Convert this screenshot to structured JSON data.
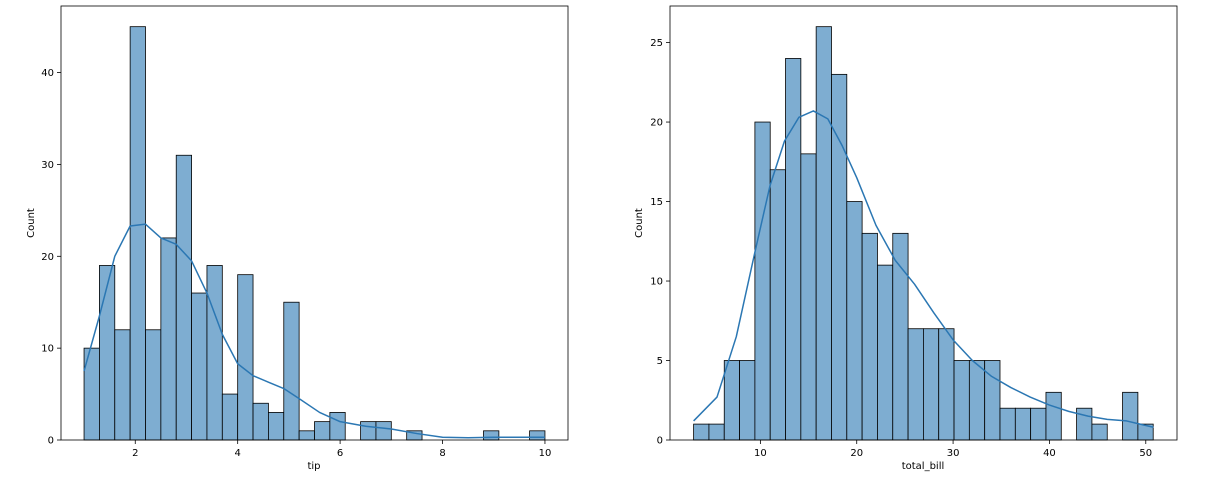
{
  "chart_data": [
    {
      "type": "bar",
      "subtype": "histogram",
      "kde": true,
      "xlabel": "tip",
      "ylabel": "Count",
      "xlim": [
        0.55,
        10.45
      ],
      "ylim": [
        0,
        47.25
      ],
      "xticks": [
        2,
        4,
        6,
        8,
        10
      ],
      "yticks": [
        0,
        10,
        20,
        30,
        40
      ],
      "grid": false,
      "bar_color": "#7eadd1",
      "bar_edge_color": "#000000",
      "line_color": "#2b77b3",
      "bin_start": 1.0,
      "bin_width": 0.3,
      "counts": [
        10,
        19,
        12,
        45,
        12,
        22,
        31,
        16,
        19,
        5,
        18,
        4,
        3,
        15,
        1,
        2,
        3,
        0,
        2,
        2,
        0,
        1,
        0,
        0,
        0,
        0,
        1,
        0,
        0,
        1
      ],
      "kde_curve": {
        "x": [
          1.0,
          1.3,
          1.6,
          1.9,
          2.2,
          2.5,
          2.8,
          3.1,
          3.4,
          3.7,
          4.0,
          4.3,
          4.6,
          4.9,
          5.2,
          5.6,
          6.0,
          6.5,
          7.0,
          7.5,
          8.0,
          8.5,
          9.0,
          9.5,
          10.0
        ],
        "y": [
          7.5,
          13.5,
          20.0,
          23.3,
          23.5,
          22.0,
          21.3,
          19.5,
          16.0,
          11.5,
          8.3,
          7.0,
          6.3,
          5.6,
          4.5,
          3.0,
          2.0,
          1.5,
          1.2,
          0.7,
          0.3,
          0.25,
          0.3,
          0.3,
          0.3
        ]
      }
    },
    {
      "type": "bar",
      "subtype": "histogram",
      "kde": true,
      "xlabel": "total_bill",
      "ylabel": "Count",
      "xlim": [
        0.62,
        53.24
      ],
      "ylim": [
        0,
        27.3
      ],
      "xticks": [
        10,
        20,
        30,
        40,
        50
      ],
      "yticks": [
        0,
        5,
        10,
        15,
        20,
        25
      ],
      "grid": false,
      "bar_color": "#7eadd1",
      "bar_edge_color": "#000000",
      "line_color": "#2b77b3",
      "bin_start": 3.07,
      "bin_width": 1.59,
      "counts": [
        1,
        1,
        5,
        5,
        20,
        17,
        24,
        18,
        26,
        23,
        15,
        13,
        11,
        13,
        7,
        7,
        7,
        5,
        5,
        5,
        2,
        2,
        2,
        3,
        0,
        2,
        1,
        0,
        3,
        1
      ],
      "kde_curve": {
        "x": [
          3.07,
          5.5,
          7.5,
          9.5,
          11.0,
          12.5,
          14.0,
          15.5,
          17.0,
          18.5,
          20.0,
          22.0,
          24.0,
          26.0,
          28.0,
          30.0,
          32.0,
          34.0,
          36.0,
          38.0,
          40.0,
          42.0,
          44.0,
          46.0,
          48.0,
          50.8
        ],
        "y": [
          1.2,
          2.7,
          6.5,
          12.0,
          16.0,
          18.8,
          20.3,
          20.7,
          20.2,
          18.5,
          16.5,
          13.5,
          11.3,
          9.8,
          8.0,
          6.3,
          5.0,
          4.0,
          3.3,
          2.7,
          2.2,
          1.8,
          1.5,
          1.3,
          1.2,
          0.8
        ]
      }
    }
  ]
}
